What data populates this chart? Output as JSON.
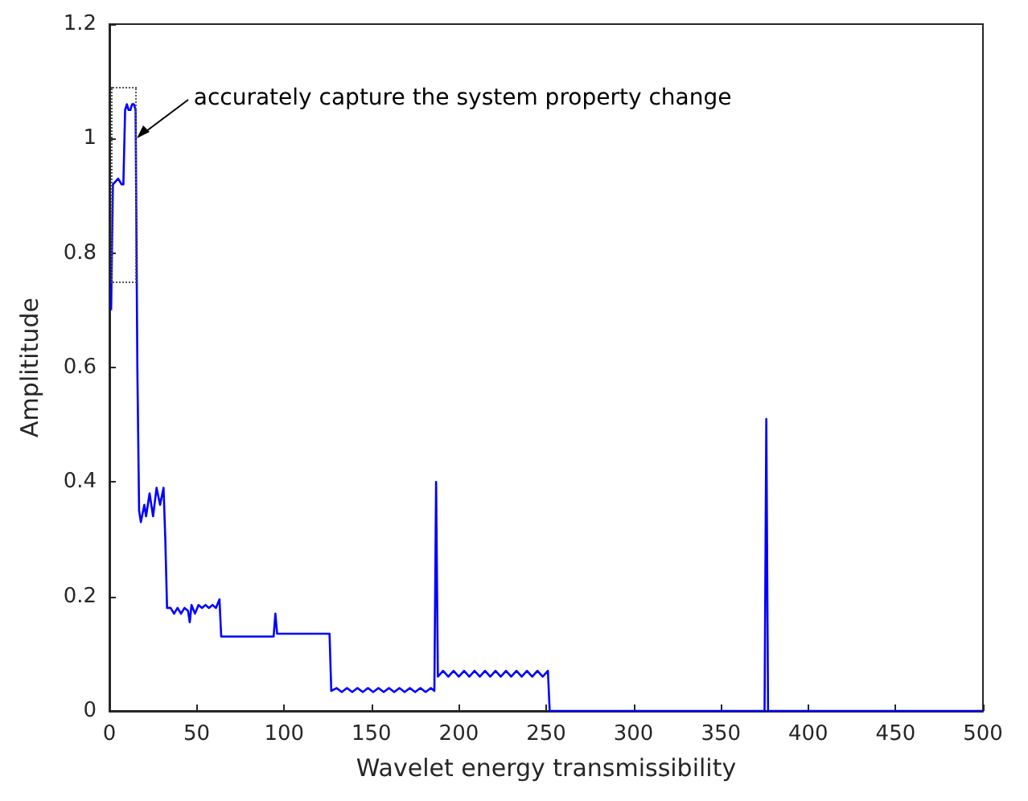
{
  "chart_data": {
    "type": "line",
    "xlabel": "Wavelet energy transmissibility",
    "ylabel": "Amplititude",
    "x": [
      1,
      2,
      5,
      7,
      8,
      9,
      10,
      11,
      12,
      13,
      14,
      15,
      16,
      17,
      18,
      20,
      21,
      23,
      25,
      27,
      29,
      31,
      32,
      33,
      35,
      37,
      39,
      41,
      43,
      45,
      46,
      47,
      49,
      51,
      53,
      55,
      57,
      59,
      61,
      63,
      64,
      70,
      94,
      95,
      96,
      126,
      127,
      130,
      133,
      136,
      139,
      142,
      145,
      148,
      151,
      154,
      157,
      160,
      163,
      166,
      169,
      172,
      175,
      178,
      181,
      184,
      186,
      187,
      188,
      191,
      194,
      197,
      200,
      203,
      206,
      209,
      212,
      215,
      218,
      221,
      224,
      227,
      230,
      233,
      236,
      239,
      242,
      245,
      248,
      251,
      252,
      300,
      375,
      376,
      377,
      500
    ],
    "series": [
      {
        "color": "#0000ff",
        "values": [
          0.7,
          0.92,
          0.93,
          0.92,
          0.92,
          1.05,
          1.06,
          1.05,
          1.05,
          1.06,
          1.06,
          1.05,
          0.6,
          0.35,
          0.33,
          0.36,
          0.34,
          0.38,
          0.34,
          0.39,
          0.36,
          0.39,
          0.3,
          0.18,
          0.18,
          0.17,
          0.18,
          0.17,
          0.18,
          0.175,
          0.155,
          0.185,
          0.17,
          0.185,
          0.18,
          0.185,
          0.18,
          0.185,
          0.18,
          0.195,
          0.13,
          0.13,
          0.13,
          0.17,
          0.135,
          0.135,
          0.035,
          0.04,
          0.033,
          0.04,
          0.033,
          0.04,
          0.033,
          0.04,
          0.033,
          0.04,
          0.033,
          0.04,
          0.033,
          0.04,
          0.033,
          0.04,
          0.033,
          0.04,
          0.033,
          0.04,
          0.035,
          0.4,
          0.06,
          0.07,
          0.06,
          0.07,
          0.06,
          0.07,
          0.06,
          0.07,
          0.06,
          0.07,
          0.06,
          0.07,
          0.06,
          0.07,
          0.06,
          0.07,
          0.06,
          0.07,
          0.06,
          0.07,
          0.06,
          0.07,
          0,
          0,
          0,
          0.51,
          0,
          0
        ]
      }
    ],
    "xlim": [
      0,
      500
    ],
    "xticks": [
      0,
      50,
      100,
      150,
      200,
      250,
      300,
      350,
      400,
      450,
      500
    ],
    "ylim": [
      0,
      1.2
    ],
    "yticks": [
      0,
      0.2,
      0.4,
      0.6,
      0.8,
      1,
      1.2
    ],
    "grid": false,
    "marker": "none",
    "line_style": "solid",
    "annotations": [
      {
        "text": "accurately capture the system property change",
        "x": 16,
        "y": 1.0
      }
    ]
  }
}
